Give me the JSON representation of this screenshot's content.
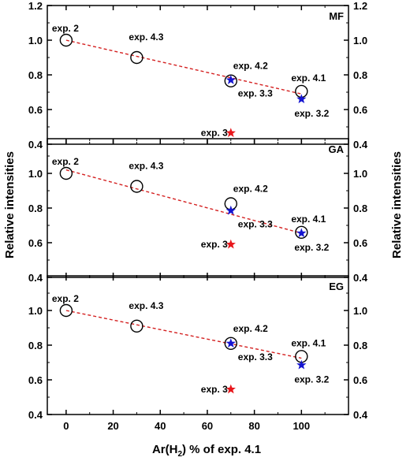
{
  "chart_data": [
    {
      "type": "scatter",
      "panel_label": "MF",
      "ylabel": "Relative intensities",
      "xlabel": "Ar(H2) % of exp. 4.1",
      "xlabel_base": "Ar(H",
      "xlabel_sub": "2",
      "xlabel_tail": ") % of exp. 4.1",
      "xlim": [
        -8,
        120
      ],
      "ylim": [
        0.4,
        1.2
      ],
      "yticks": [
        "0.4",
        "0.6",
        "0.8",
        "1.0",
        "1.2"
      ],
      "series": [
        {
          "marker": "circle",
          "color": "#000000",
          "points": [
            {
              "x": 0,
              "y": 1.0,
              "label": "exp. 2"
            },
            {
              "x": 30,
              "y": 0.9,
              "label": "exp. 4.3"
            },
            {
              "x": 70,
              "y": 0.765,
              "label": "exp. 4.2"
            },
            {
              "x": 100,
              "y": 0.705,
              "label": "exp. 4.1"
            }
          ]
        },
        {
          "marker": "star",
          "color": "#1515d0",
          "points": [
            {
              "x": 70,
              "y": 0.77,
              "label": "exp. 3.3"
            },
            {
              "x": 100,
              "y": 0.66,
              "label": "exp. 3.2"
            }
          ]
        },
        {
          "marker": "star",
          "color": "#e8161b",
          "points": [
            {
              "x": 70,
              "y": 0.465,
              "label": "exp. 3"
            }
          ]
        }
      ],
      "fit": {
        "x": [
          0,
          100
        ],
        "y": [
          1.0,
          0.69
        ],
        "color": "#d42020",
        "style": "dashed"
      }
    },
    {
      "type": "scatter",
      "panel_label": "GA",
      "ylabel": "Relative intensities",
      "xlim": [
        -8,
        120
      ],
      "ylim": [
        0.4,
        1.2
      ],
      "yticks": [
        "0.4",
        "0.6",
        "0.8",
        "1.0"
      ],
      "series": [
        {
          "marker": "circle",
          "color": "#000000",
          "points": [
            {
              "x": 0,
              "y": 1.0,
              "label": "exp. 2"
            },
            {
              "x": 30,
              "y": 0.925,
              "label": "exp. 4.3"
            },
            {
              "x": 70,
              "y": 0.825,
              "label": "exp. 4.2"
            },
            {
              "x": 100,
              "y": 0.66,
              "label": "exp. 4.1"
            }
          ]
        },
        {
          "marker": "star",
          "color": "#1515d0",
          "points": [
            {
              "x": 70,
              "y": 0.785,
              "label": "exp. 3.3"
            },
            {
              "x": 100,
              "y": 0.655,
              "label": "exp. 3.2"
            }
          ]
        },
        {
          "marker": "star",
          "color": "#e8161b",
          "points": [
            {
              "x": 70,
              "y": 0.59,
              "label": "exp. 3"
            }
          ]
        }
      ],
      "fit": {
        "x": [
          0,
          100
        ],
        "y": [
          1.02,
          0.655
        ],
        "color": "#d42020",
        "style": "dashed"
      }
    },
    {
      "type": "scatter",
      "panel_label": "EG",
      "ylabel": "Relative intensities",
      "xlabel": "Ar(H2) % of exp. 4.1",
      "xlim": [
        -8,
        120
      ],
      "ylim": [
        0.4,
        1.2
      ],
      "xticks": [
        "0",
        "20",
        "40",
        "60",
        "80",
        "100"
      ],
      "yticks": [
        "0.4",
        "0.6",
        "0.8",
        "1.0"
      ],
      "series": [
        {
          "marker": "circle",
          "color": "#000000",
          "points": [
            {
              "x": 0,
              "y": 1.0,
              "label": "exp. 2"
            },
            {
              "x": 30,
              "y": 0.91,
              "label": "exp. 4.3"
            },
            {
              "x": 70,
              "y": 0.81,
              "label": "exp. 4.2"
            },
            {
              "x": 100,
              "y": 0.735,
              "label": "exp. 4.1"
            }
          ]
        },
        {
          "marker": "star",
          "color": "#1515d0",
          "points": [
            {
              "x": 70,
              "y": 0.81,
              "label": "exp. 3.3"
            },
            {
              "x": 100,
              "y": 0.685,
              "label": "exp. 3.2"
            }
          ]
        },
        {
          "marker": "star",
          "color": "#e8161b",
          "points": [
            {
              "x": 70,
              "y": 0.545,
              "label": "exp. 3"
            }
          ]
        }
      ],
      "fit": {
        "x": [
          0,
          100
        ],
        "y": [
          1.0,
          0.725
        ],
        "color": "#d42020",
        "style": "dashed"
      }
    }
  ]
}
